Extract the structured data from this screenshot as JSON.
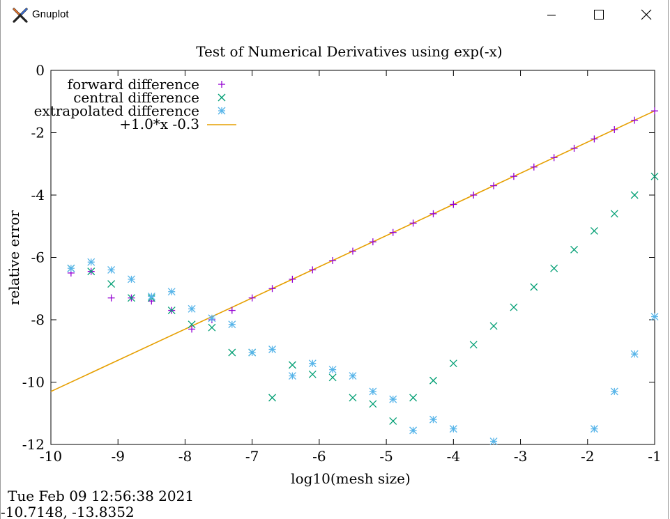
{
  "window": {
    "title": "Gnuplot",
    "controls": [
      "minimize",
      "maximize",
      "close"
    ]
  },
  "status": {
    "timestamp": "Tue Feb 09 12:56:38 2021",
    "coords": "-10.7148, -13.8352"
  },
  "chart_data": {
    "type": "scatter",
    "title": "Test of Numerical Derivatives using exp(-x)",
    "xlabel": "log10(mesh size)",
    "ylabel": "relative error",
    "xlim": [
      -10,
      -1
    ],
    "ylim": [
      -12,
      0
    ],
    "x_ticks": [
      -10,
      -9,
      -8,
      -7,
      -6,
      -5,
      -4,
      -3,
      -2,
      -1
    ],
    "y_ticks": [
      0,
      -2,
      -4,
      -6,
      -8,
      -10,
      -12
    ],
    "legend_position": "top-left",
    "grid": false,
    "series": [
      {
        "name": "forward difference",
        "marker": "+",
        "color": "#9400d3",
        "points": [
          [
            -9.7,
            -6.5
          ],
          [
            -9.4,
            -6.45
          ],
          [
            -9.1,
            -7.3
          ],
          [
            -8.8,
            -7.3
          ],
          [
            -8.5,
            -7.4
          ],
          [
            -8.2,
            -7.7
          ],
          [
            -7.9,
            -8.3
          ],
          [
            -7.6,
            -8.0
          ],
          [
            -7.3,
            -7.7
          ],
          [
            -7.0,
            -7.3
          ],
          [
            -6.7,
            -7.0
          ],
          [
            -6.4,
            -6.7
          ],
          [
            -6.1,
            -6.4
          ],
          [
            -5.8,
            -6.1
          ],
          [
            -5.5,
            -5.8
          ],
          [
            -5.2,
            -5.5
          ],
          [
            -4.9,
            -5.2
          ],
          [
            -4.6,
            -4.9
          ],
          [
            -4.3,
            -4.6
          ],
          [
            -4.0,
            -4.3
          ],
          [
            -3.7,
            -4.0
          ],
          [
            -3.4,
            -3.7
          ],
          [
            -3.1,
            -3.4
          ],
          [
            -2.8,
            -3.1
          ],
          [
            -2.5,
            -2.8
          ],
          [
            -2.2,
            -2.5
          ],
          [
            -1.9,
            -2.2
          ],
          [
            -1.6,
            -1.9
          ],
          [
            -1.3,
            -1.6
          ],
          [
            -1.0,
            -1.3
          ]
        ]
      },
      {
        "name": "central difference",
        "marker": "x",
        "color": "#009e73",
        "points": [
          [
            -9.7,
            -6.35
          ],
          [
            -9.4,
            -6.45
          ],
          [
            -9.1,
            -6.85
          ],
          [
            -8.8,
            -7.3
          ],
          [
            -8.5,
            -7.3
          ],
          [
            -8.2,
            -7.7
          ],
          [
            -7.9,
            -8.15
          ],
          [
            -7.6,
            -8.25
          ],
          [
            -7.3,
            -9.05
          ],
          [
            -7.0,
            -9.05
          ],
          [
            -6.7,
            -10.5
          ],
          [
            -6.4,
            -9.45
          ],
          [
            -6.1,
            -9.75
          ],
          [
            -5.8,
            -9.85
          ],
          [
            -5.5,
            -10.5
          ],
          [
            -5.2,
            -10.7
          ],
          [
            -4.9,
            -11.25
          ],
          [
            -4.6,
            -10.5
          ],
          [
            -4.3,
            -9.95
          ],
          [
            -4.0,
            -9.4
          ],
          [
            -3.7,
            -8.8
          ],
          [
            -3.4,
            -8.2
          ],
          [
            -3.1,
            -7.6
          ],
          [
            -2.8,
            -6.95
          ],
          [
            -2.5,
            -6.35
          ],
          [
            -2.2,
            -5.75
          ],
          [
            -1.9,
            -5.15
          ],
          [
            -1.6,
            -4.6
          ],
          [
            -1.3,
            -4.0
          ],
          [
            -1.0,
            -3.4
          ]
        ]
      },
      {
        "name": "extrapolated difference",
        "marker": "*",
        "color": "#56b4e9",
        "points": [
          [
            -9.7,
            -6.35
          ],
          [
            -9.4,
            -6.15
          ],
          [
            -9.1,
            -6.4
          ],
          [
            -8.8,
            -6.7
          ],
          [
            -8.5,
            -7.25
          ],
          [
            -8.2,
            -7.1
          ],
          [
            -7.9,
            -7.65
          ],
          [
            -7.6,
            -7.95
          ],
          [
            -7.3,
            -8.15
          ],
          [
            -7.0,
            -9.05
          ],
          [
            -6.7,
            -8.95
          ],
          [
            -6.4,
            -9.8
          ],
          [
            -6.1,
            -9.4
          ],
          [
            -5.8,
            -9.6
          ],
          [
            -5.5,
            -9.8
          ],
          [
            -5.2,
            -10.3
          ],
          [
            -4.9,
            -10.55
          ],
          [
            -4.6,
            -11.55
          ],
          [
            -4.3,
            -11.2
          ],
          [
            -4.0,
            -11.5
          ],
          [
            -3.4,
            -11.9
          ],
          [
            -1.9,
            -11.5
          ],
          [
            -1.6,
            -10.3
          ],
          [
            -1.3,
            -9.1
          ],
          [
            -1.0,
            -7.9
          ]
        ]
      },
      {
        "name": "+1.0*x -0.3",
        "type": "line",
        "color": "#e69f00",
        "function": {
          "slope": 1.0,
          "intercept": -0.3
        }
      }
    ]
  }
}
